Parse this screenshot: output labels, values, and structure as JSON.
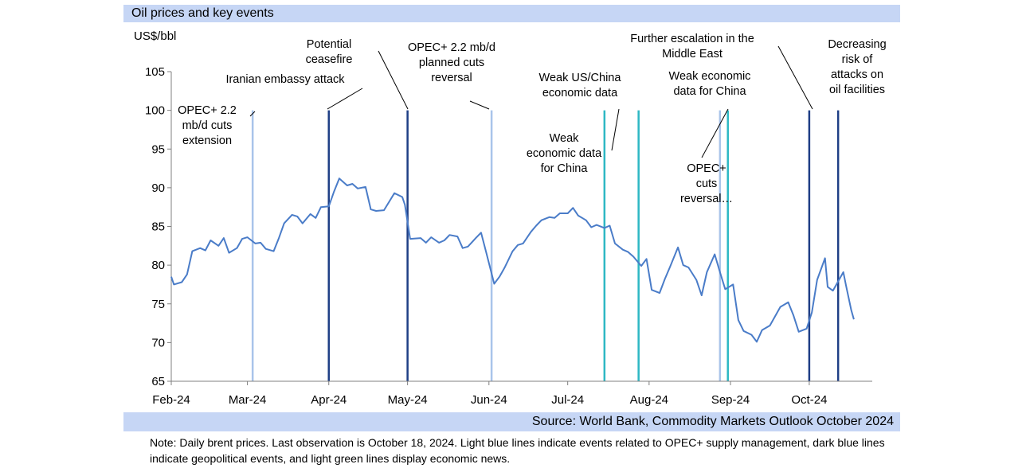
{
  "title": "Oil prices and key events",
  "source": "Source: World Bank, Commodity Markets Outlook October 2024",
  "note": "Note: Daily brent prices. Last observation is October 18, 2024. Light blue lines indicate events related to OPEC+ supply management, dark blue lines indicate geopolitical events, and light green lines display economic news.",
  "colors": {
    "series": "#4a7cc8",
    "opec": "#a9c4ea",
    "geo": "#1f3f86",
    "econ": "#2eb8c4",
    "band": "#c6d6f5"
  },
  "chart_data": {
    "type": "line",
    "title": "Oil prices and key events",
    "ylabel": "US$/bbl",
    "ylim": [
      65,
      105
    ],
    "yticks": [
      65,
      70,
      75,
      80,
      85,
      90,
      95,
      100,
      105
    ],
    "xticks": [
      {
        "label": "Feb-24",
        "date": "2024-02-01"
      },
      {
        "label": "Mar-24",
        "date": "2024-03-01"
      },
      {
        "label": "Apr-24",
        "date": "2024-04-01"
      },
      {
        "label": "May-24",
        "date": "2024-05-01"
      },
      {
        "label": "Jun-24",
        "date": "2024-06-01"
      },
      {
        "label": "Jul-24",
        "date": "2024-07-01"
      },
      {
        "label": "Aug-24",
        "date": "2024-08-01"
      },
      {
        "label": "Sep-24",
        "date": "2024-09-01"
      },
      {
        "label": "Oct-24",
        "date": "2024-10-01"
      }
    ],
    "xlim": [
      "2024-02-01",
      "2024-10-25"
    ],
    "series": [
      {
        "x": [
          "2024-02-01",
          "2024-02-02",
          "2024-02-05",
          "2024-02-07",
          "2024-02-09",
          "2024-02-12",
          "2024-02-14",
          "2024-02-16",
          "2024-02-19",
          "2024-02-21",
          "2024-02-23",
          "2024-02-26",
          "2024-02-28",
          "2024-03-01",
          "2024-03-04",
          "2024-03-06",
          "2024-03-08",
          "2024-03-11",
          "2024-03-13",
          "2024-03-15",
          "2024-03-18",
          "2024-03-20",
          "2024-03-22",
          "2024-03-25",
          "2024-03-27",
          "2024-03-29",
          "2024-04-01",
          "2024-04-03",
          "2024-04-05",
          "2024-04-08",
          "2024-04-10",
          "2024-04-12",
          "2024-04-15",
          "2024-04-17",
          "2024-04-19",
          "2024-04-22",
          "2024-04-24",
          "2024-04-26",
          "2024-04-29",
          "2024-04-30",
          "2024-05-02",
          "2024-05-06",
          "2024-05-08",
          "2024-05-10",
          "2024-05-13",
          "2024-05-15",
          "2024-05-17",
          "2024-05-20",
          "2024-05-22",
          "2024-05-24",
          "2024-05-27",
          "2024-05-29",
          "2024-05-31",
          "2024-06-03",
          "2024-06-05",
          "2024-06-07",
          "2024-06-10",
          "2024-06-12",
          "2024-06-14",
          "2024-06-17",
          "2024-06-19",
          "2024-06-21",
          "2024-06-24",
          "2024-06-26",
          "2024-06-28",
          "2024-07-01",
          "2024-07-03",
          "2024-07-05",
          "2024-07-08",
          "2024-07-10",
          "2024-07-12",
          "2024-07-15",
          "2024-07-17",
          "2024-07-19",
          "2024-07-22",
          "2024-07-24",
          "2024-07-26",
          "2024-07-29",
          "2024-07-31",
          "2024-08-02",
          "2024-08-05",
          "2024-08-07",
          "2024-08-09",
          "2024-08-12",
          "2024-08-14",
          "2024-08-16",
          "2024-08-19",
          "2024-08-21",
          "2024-08-23",
          "2024-08-26",
          "2024-08-28",
          "2024-08-30",
          "2024-09-02",
          "2024-09-04",
          "2024-09-06",
          "2024-09-09",
          "2024-09-11",
          "2024-09-13",
          "2024-09-16",
          "2024-09-18",
          "2024-09-20",
          "2024-09-23",
          "2024-09-25",
          "2024-09-27",
          "2024-09-30",
          "2024-10-02",
          "2024-10-04",
          "2024-10-07",
          "2024-10-08",
          "2024-10-10",
          "2024-10-14",
          "2024-10-15",
          "2024-10-17",
          "2024-10-18"
        ],
        "y": [
          78.5,
          77.5,
          77.8,
          78.8,
          81.8,
          82.2,
          81.9,
          83.2,
          82.5,
          83.5,
          81.6,
          82.2,
          83.4,
          83.6,
          82.8,
          82.9,
          82.1,
          81.8,
          83.5,
          85.4,
          86.5,
          86.3,
          85.4,
          86.6,
          86.1,
          87.5,
          87.6,
          89.5,
          91.2,
          90.3,
          90.5,
          89.9,
          90.1,
          87.2,
          87.0,
          87.1,
          88.2,
          89.3,
          88.8,
          87.8,
          83.4,
          83.5,
          82.9,
          83.6,
          82.9,
          83.2,
          83.9,
          83.7,
          82.2,
          82.4,
          83.5,
          84.2,
          81.6,
          77.6,
          78.5,
          79.7,
          81.8,
          82.6,
          82.8,
          84.3,
          85.1,
          85.8,
          86.2,
          86.1,
          86.7,
          86.7,
          87.4,
          86.4,
          85.8,
          84.9,
          85.2,
          84.8,
          85.1,
          82.8,
          82.0,
          81.7,
          81.1,
          79.9,
          80.8,
          76.8,
          76.4,
          78.2,
          79.8,
          82.3,
          80.0,
          79.7,
          78.1,
          76.1,
          79.1,
          81.4,
          79.1,
          76.9,
          77.5,
          72.9,
          71.5,
          71.0,
          70.1,
          71.6,
          72.2,
          73.4,
          74.6,
          75.2,
          73.5,
          71.4,
          71.8,
          73.9,
          78.1,
          80.9,
          77.2,
          76.7,
          79.1,
          77.4,
          74.2,
          73.0
        ]
      }
    ],
    "events": [
      {
        "date": "2024-03-03",
        "type": "opec",
        "label": [
          "OPEC+ 2.2",
          "mb/d cuts",
          "extension"
        ]
      },
      {
        "date": "2024-04-01",
        "type": "geo",
        "label": [
          "Iranian embassy attack"
        ]
      },
      {
        "date": "2024-05-01",
        "type": "geo",
        "label": [
          "Potential",
          "ceasefire"
        ]
      },
      {
        "date": "2024-06-02",
        "type": "opec",
        "label": [
          "OPEC+ 2.2 mb/d",
          "planned cuts",
          "reversal"
        ]
      },
      {
        "date": "2024-07-15",
        "type": "econ",
        "label": [
          "Weak",
          "economic data",
          "for China"
        ]
      },
      {
        "date": "2024-07-28",
        "type": "econ",
        "label": [
          "Weak US/China",
          "economic data"
        ]
      },
      {
        "date": "2024-08-28",
        "type": "opec",
        "label": [
          "OPEC+",
          "cuts",
          "reversal…"
        ]
      },
      {
        "date": "2024-08-31",
        "type": "econ",
        "label": [
          "Weak economic",
          "data for China"
        ]
      },
      {
        "date": "2024-10-01",
        "type": "geo",
        "label": [
          "Further escalation in the",
          "Middle East"
        ]
      },
      {
        "date": "2024-10-12",
        "type": "geo",
        "label": [
          "Decreasing",
          "risk of",
          "attacks on",
          "oil facilities"
        ]
      }
    ]
  }
}
